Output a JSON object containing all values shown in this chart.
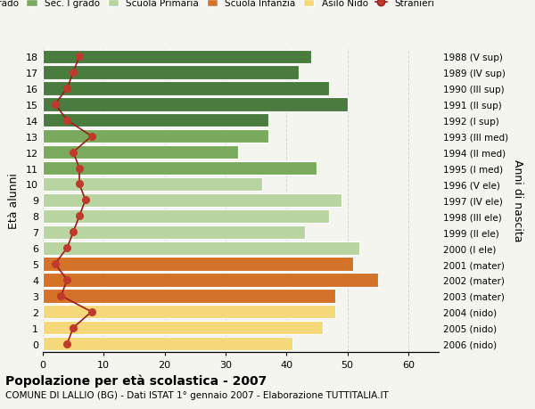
{
  "ages": [
    0,
    1,
    2,
    3,
    4,
    5,
    6,
    7,
    8,
    9,
    10,
    11,
    12,
    13,
    14,
    15,
    16,
    17,
    18
  ],
  "bar_values": [
    41,
    46,
    48,
    48,
    55,
    51,
    52,
    43,
    47,
    49,
    36,
    45,
    32,
    37,
    37,
    50,
    47,
    42,
    44
  ],
  "stranieri_values": [
    4,
    5,
    8,
    3,
    4,
    2,
    4,
    5,
    6,
    7,
    6,
    6,
    5,
    8,
    4,
    2,
    4,
    5,
    6
  ],
  "right_labels": [
    "2006 (nido)",
    "2005 (nido)",
    "2004 (nido)",
    "2003 (mater)",
    "2002 (mater)",
    "2001 (mater)",
    "2000 (I ele)",
    "1999 (II ele)",
    "1998 (III ele)",
    "1997 (IV ele)",
    "1996 (V ele)",
    "1995 (I med)",
    "1994 (II med)",
    "1993 (III med)",
    "1992 (I sup)",
    "1991 (II sup)",
    "1990 (III sup)",
    "1989 (IV sup)",
    "1988 (V sup)"
  ],
  "colors": {
    "sec2": "#4a7c3f",
    "sec1": "#7aaa5d",
    "primaria": "#b8d4a0",
    "infanzia": "#d4722a",
    "nido": "#f5d87a",
    "stranieri_line": "#9b1a1a",
    "stranieri_dot": "#c0392b"
  },
  "legend_labels": [
    "Sec. II grado",
    "Sec. I grado",
    "Scuola Primaria",
    "Scuola Infanzia",
    "Asilo Nido",
    "Stranieri"
  ],
  "ylabel_left": "Età alunni",
  "ylabel_right": "Anni di nascita",
  "xlim": [
    0,
    65
  ],
  "title": "Popolazione per età scolastica - 2007",
  "subtitle": "COMUNE DI LALLIO (BG) - Dati ISTAT 1° gennaio 2007 - Elaborazione TUTTITALIA.IT",
  "bg_color": "#f5f5f0"
}
